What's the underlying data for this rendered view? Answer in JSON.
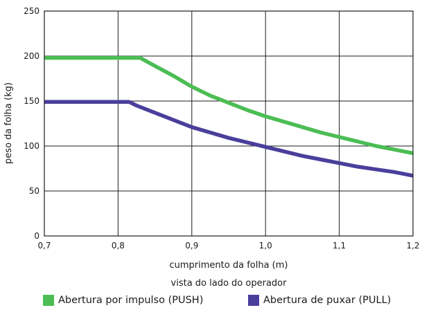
{
  "chart_data": {
    "type": "line",
    "xlabel": "cumprimento da folha (m)",
    "ylabel": "peso da folha (kg)",
    "note": "vista do lado do operador",
    "xlim": [
      0.7,
      1.2
    ],
    "ylim": [
      0,
      250
    ],
    "x_ticks": [
      "0,7",
      "0,8",
      "0,9",
      "1,0",
      "1,1",
      "1,2"
    ],
    "y_ticks": [
      "0",
      "50",
      "100",
      "150",
      "200",
      "250"
    ],
    "x_tick_values": [
      0.7,
      0.8,
      0.9,
      1.0,
      1.1,
      1.2
    ],
    "y_tick_values": [
      0,
      50,
      100,
      150,
      200,
      250
    ],
    "grid": true,
    "legend_position": "bottom",
    "series": [
      {
        "name": "Abertura por impulso (PUSH)",
        "color": "#4cbd54",
        "points": [
          [
            0.7,
            198
          ],
          [
            0.83,
            198
          ],
          [
            0.85,
            189
          ],
          [
            0.875,
            178
          ],
          [
            0.9,
            166
          ],
          [
            0.925,
            156
          ],
          [
            0.95,
            148
          ],
          [
            0.975,
            140
          ],
          [
            1.0,
            133
          ],
          [
            1.025,
            127
          ],
          [
            1.05,
            121
          ],
          [
            1.075,
            115
          ],
          [
            1.1,
            110
          ],
          [
            1.125,
            105
          ],
          [
            1.15,
            100
          ],
          [
            1.175,
            96
          ],
          [
            1.2,
            92
          ]
        ]
      },
      {
        "name": "Abertura de puxar (PULL)",
        "color": "#4a3f9b",
        "points": [
          [
            0.7,
            149
          ],
          [
            0.815,
            149
          ],
          [
            0.825,
            145
          ],
          [
            0.85,
            137
          ],
          [
            0.875,
            129
          ],
          [
            0.9,
            121
          ],
          [
            0.925,
            115
          ],
          [
            0.95,
            109
          ],
          [
            0.975,
            104
          ],
          [
            1.0,
            99
          ],
          [
            1.025,
            94
          ],
          [
            1.05,
            89
          ],
          [
            1.075,
            85
          ],
          [
            1.1,
            81
          ],
          [
            1.125,
            77
          ],
          [
            1.15,
            74
          ],
          [
            1.175,
            71
          ],
          [
            1.2,
            67
          ]
        ]
      }
    ]
  }
}
